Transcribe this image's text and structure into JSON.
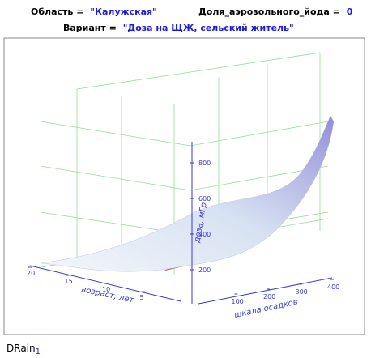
{
  "header": {
    "region_label": "Область =",
    "region_value": "\"Калужская\"",
    "iodine_label": "Доля_аэрозольного_йода =",
    "iodine_value": "0",
    "variant_label": "Вариант =",
    "variant_value": "\"Доза на ЩЖ, сельский житель\""
  },
  "chart": {
    "type": "surface3d",
    "z_axis": {
      "title": "доза, мГр",
      "ticks": [
        200,
        400,
        600,
        800
      ]
    },
    "x_axis": {
      "title": "шкала осадков",
      "ticks": [
        100,
        200,
        300,
        400
      ]
    },
    "y_axis": {
      "title": "возраст, лет",
      "ticks": [
        5,
        10,
        15,
        20
      ]
    }
  },
  "footer": {
    "name": "DRain",
    "subscript": "1"
  }
}
